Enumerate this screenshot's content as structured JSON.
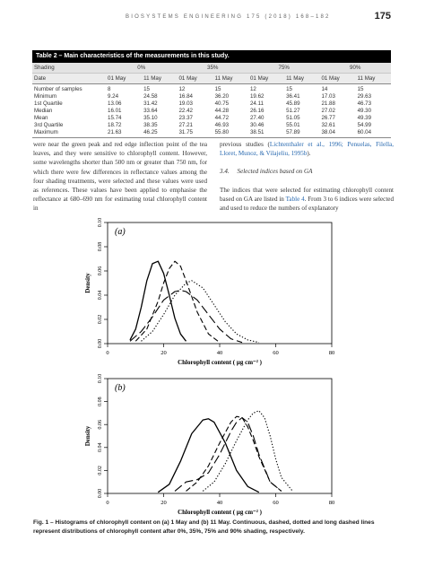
{
  "header": {
    "journal": "BIOSYSTEMS ENGINEERING 175 (2018) 168–182",
    "page_number": "175"
  },
  "table": {
    "caption": "Table 2 – Main characteristics of the measurements in this study.",
    "shading_label": "Shading",
    "shading_levels": [
      "0%",
      "35%",
      "75%",
      "90%"
    ],
    "date_label": "Date",
    "dates": [
      "01 May",
      "11 May",
      "01 May",
      "11 May",
      "01 May",
      "11 May",
      "01 May",
      "11 May"
    ],
    "rows": [
      {
        "label": "Number of samples",
        "values": [
          "8",
          "15",
          "12",
          "15",
          "12",
          "15",
          "14",
          "15"
        ]
      },
      {
        "label": "Minimum",
        "values": [
          "9.24",
          "24.58",
          "16.84",
          "36.20",
          "19.62",
          "36.41",
          "17.03",
          "29.63"
        ]
      },
      {
        "label": "1st Quartile",
        "values": [
          "13.06",
          "31.42",
          "19.03",
          "40.75",
          "24.11",
          "45.89",
          "21.88",
          "46.73"
        ]
      },
      {
        "label": "Median",
        "values": [
          "16.01",
          "33.64",
          "22.42",
          "44.28",
          "26.16",
          "51.27",
          "27.02",
          "49.30"
        ]
      },
      {
        "label": "Mean",
        "values": [
          "15.74",
          "35.10",
          "23.37",
          "44.72",
          "27.40",
          "51.05",
          "26.77",
          "49.39"
        ]
      },
      {
        "label": "3rd Quartile",
        "values": [
          "18.72",
          "38.35",
          "27.21",
          "46.93",
          "30.46",
          "55.01",
          "32.61",
          "54.99"
        ]
      },
      {
        "label": "Maximum",
        "values": [
          "21.63",
          "46.25",
          "31.75",
          "55.80",
          "38.51",
          "57.89",
          "38.04",
          "60.04"
        ]
      }
    ]
  },
  "left_column": {
    "text": "were near the green peak and red edge inflection point of the tea leaves, and they were sensitive to chlorophyll content. However, some wavelengths shorter than 500 nm or greater than 750 nm, for which there were few differences in reflectance values among the four shading treatments, were selected and these values were used as references. These values have been applied to emphasise the reflectance at 680–690 nm for estimating total chlorophyll content in"
  },
  "right_column": {
    "para1_before": "previous studies (",
    "para1_link": "Lichtenthaler et al., 1996; Penuelas, Filella, Lloret, Munoz, & Vilajeliu, 1995b",
    "para1_after": ").",
    "section_number": "3.4.",
    "section_title": "Selected indices based on GA",
    "para2_before": "The indices that were selected for estimating chlorophyll content based on GA are listed in ",
    "para2_link": "Table 4",
    "para2_after": ". From 3 to 6 indices were selected and used to reduce the numbers of explanatory"
  },
  "figure": {
    "caption": "Fig. 1 – Histograms of chlorophyll content on (a) 1 May and (b) 11 May. Continuous, dashed, dotted and long dashed lines represent distributions of chlorophyll content after 0%, 35%, 75% and 90% shading, respectively."
  },
  "chart_data": [
    {
      "type": "line",
      "panel_label": "(a)",
      "xlabel": "Chlorophyll content ( μg cm⁻² )",
      "ylabel": "Density",
      "xlim": [
        0,
        80
      ],
      "ylim": [
        0,
        0.1
      ],
      "x_ticks": [
        "0",
        "20",
        "40",
        "60",
        "80"
      ],
      "y_ticks": [
        "0.00",
        "0.02",
        "0.04",
        "0.06",
        "0.08",
        "0.10"
      ],
      "series": [
        {
          "style": "continuous",
          "x": [
            8,
            10,
            12,
            14,
            16,
            18,
            20,
            22,
            24,
            26,
            28
          ],
          "y": [
            0.003,
            0.012,
            0.03,
            0.052,
            0.066,
            0.068,
            0.058,
            0.04,
            0.021,
            0.008,
            0.002
          ]
        },
        {
          "style": "dashed",
          "x": [
            10,
            14,
            18,
            20,
            22,
            24,
            26,
            28,
            32,
            36,
            40
          ],
          "y": [
            0.002,
            0.012,
            0.035,
            0.05,
            0.062,
            0.068,
            0.064,
            0.052,
            0.026,
            0.008,
            0.001
          ]
        },
        {
          "style": "dotted",
          "x": [
            12,
            16,
            20,
            24,
            28,
            30,
            34,
            38,
            42,
            46,
            50,
            54
          ],
          "y": [
            0.002,
            0.01,
            0.024,
            0.04,
            0.05,
            0.052,
            0.046,
            0.032,
            0.018,
            0.008,
            0.003,
            0.001
          ]
        },
        {
          "style": "long-dashed",
          "x": [
            8,
            12,
            16,
            20,
            24,
            26,
            28,
            32,
            36,
            40,
            44,
            48
          ],
          "y": [
            0.002,
            0.01,
            0.022,
            0.036,
            0.043,
            0.044,
            0.043,
            0.036,
            0.024,
            0.012,
            0.004,
            0.001
          ]
        }
      ]
    },
    {
      "type": "line",
      "panel_label": "(b)",
      "xlabel": "Chlorophyll content ( μg cm⁻² )",
      "ylabel": "Density",
      "xlim": [
        0,
        80
      ],
      "ylim": [
        0,
        0.1
      ],
      "x_ticks": [
        "0",
        "20",
        "40",
        "60",
        "80"
      ],
      "y_ticks": [
        "0.00",
        "0.02",
        "0.04",
        "0.06",
        "0.08",
        "0.10"
      ],
      "series": [
        {
          "style": "continuous",
          "x": [
            18,
            22,
            26,
            30,
            34,
            36,
            38,
            42,
            46,
            50,
            54
          ],
          "y": [
            0.001,
            0.008,
            0.028,
            0.052,
            0.064,
            0.065,
            0.062,
            0.044,
            0.02,
            0.006,
            0.001
          ]
        },
        {
          "style": "dashed",
          "x": [
            28,
            32,
            36,
            40,
            44,
            46,
            48,
            50,
            52,
            54,
            58,
            62
          ],
          "y": [
            0.002,
            0.01,
            0.024,
            0.044,
            0.062,
            0.067,
            0.066,
            0.058,
            0.046,
            0.032,
            0.01,
            0.002
          ]
        },
        {
          "style": "dotted",
          "x": [
            34,
            38,
            42,
            46,
            50,
            52,
            54,
            56,
            58,
            60,
            62,
            66
          ],
          "y": [
            0.002,
            0.01,
            0.026,
            0.046,
            0.064,
            0.07,
            0.072,
            0.066,
            0.05,
            0.03,
            0.014,
            0.002
          ]
        },
        {
          "style": "long-dashed",
          "x": [
            24,
            28,
            32,
            36,
            40,
            44,
            46,
            48,
            50,
            52,
            54,
            58,
            62
          ],
          "y": [
            0.002,
            0.01,
            0.012,
            0.018,
            0.034,
            0.054,
            0.062,
            0.066,
            0.062,
            0.05,
            0.034,
            0.01,
            0.002
          ]
        }
      ]
    }
  ]
}
